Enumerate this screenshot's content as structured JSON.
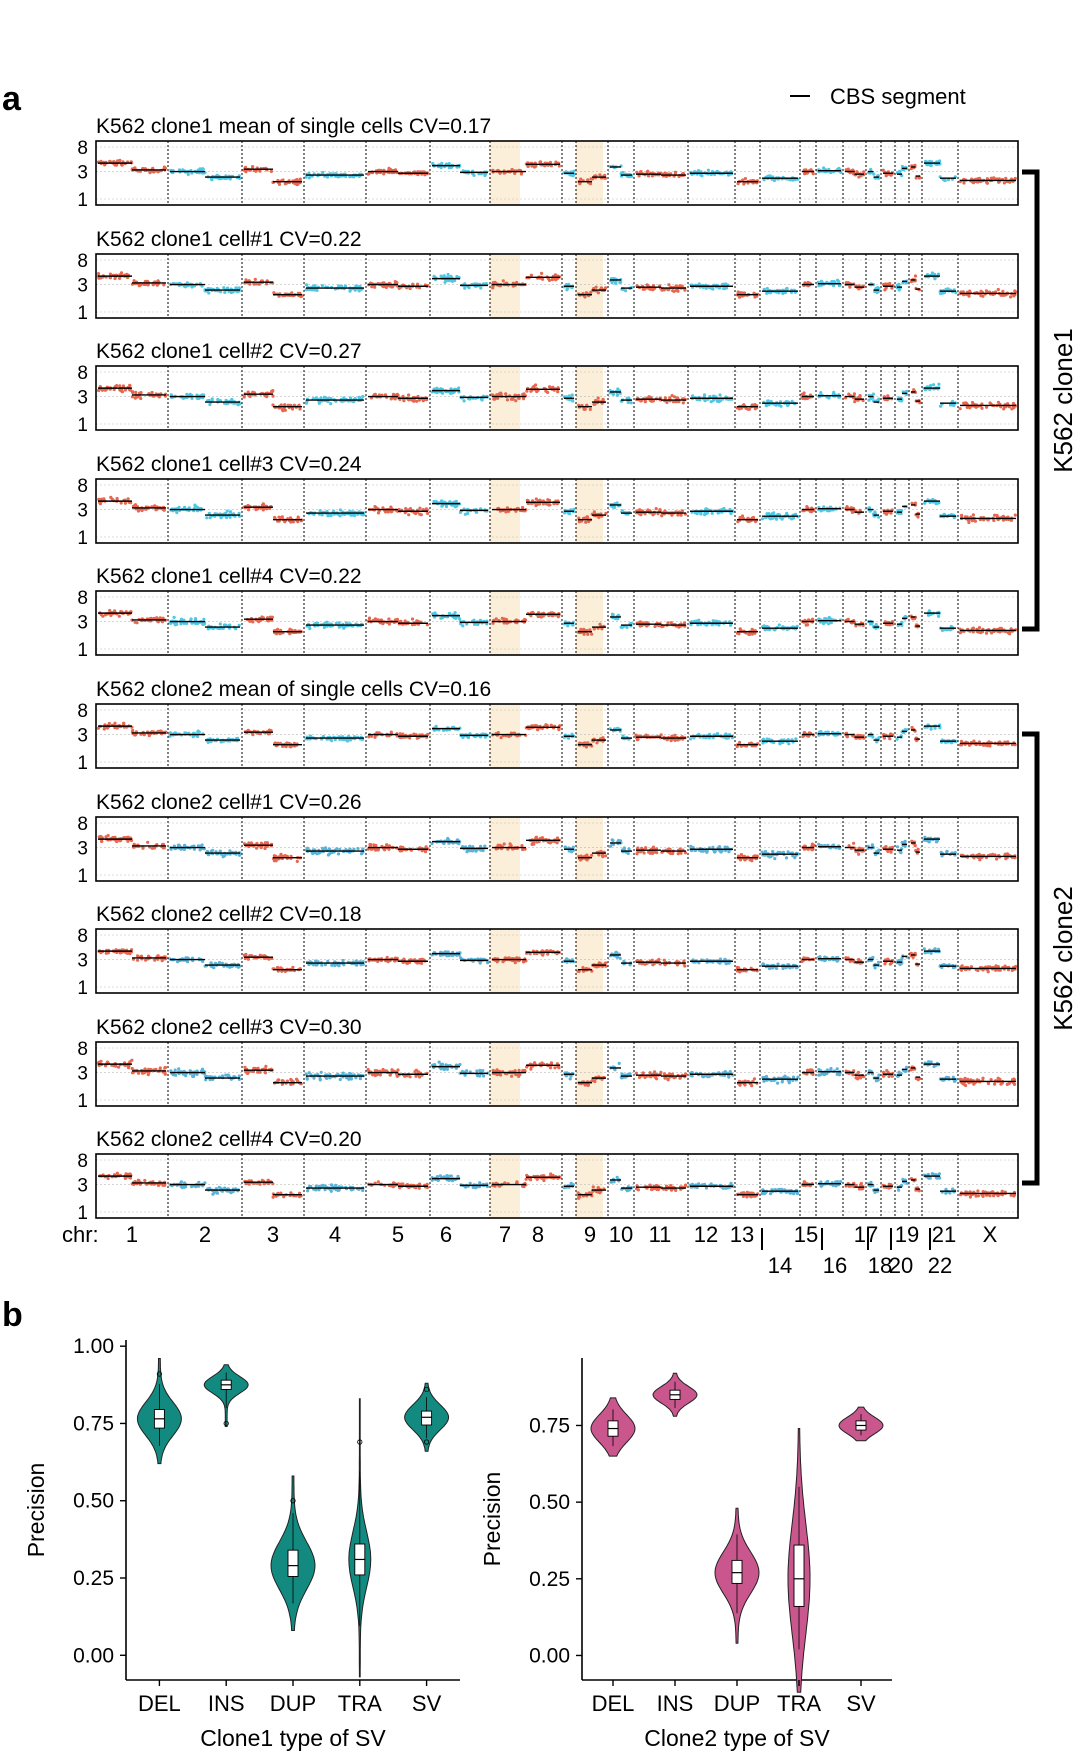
{
  "panel_a": {
    "label": "a",
    "legend": "CBS segment",
    "chr_prefix": "chr:",
    "chromosomes": [
      "1",
      "2",
      "3",
      "4",
      "5",
      "6",
      "7",
      "8",
      "9",
      "10",
      "11",
      "12",
      "13",
      "14",
      "15",
      "16",
      "17",
      "18",
      "19",
      "20",
      "21",
      "22",
      "X"
    ],
    "y_ticks": [
      "8",
      "3",
      "1"
    ],
    "highlighted_chromosomes": [
      "7",
      "9"
    ],
    "colors": {
      "odd_chr": "#e8674f",
      "even_chr": "#4fc8e6",
      "even_chr_clone2_cells": "#5ab4d9",
      "highlight": "#fbefd9",
      "segment": "#000000"
    },
    "groups": [
      {
        "label": "K562 clone1",
        "tracks": [
          0,
          1,
          2,
          3,
          4
        ]
      },
      {
        "label": "K562 clone2",
        "tracks": [
          5,
          6,
          7,
          8,
          9
        ]
      }
    ],
    "tracks": [
      {
        "title": "K562 clone1 mean of single cells CV=0.17",
        "cv": 0.17
      },
      {
        "title": "K562 clone1 cell#1 CV=0.22",
        "cv": 0.22
      },
      {
        "title": "K562 clone1 cell#2 CV=0.27",
        "cv": 0.27
      },
      {
        "title": "K562 clone1 cell#3 CV=0.24",
        "cv": 0.24
      },
      {
        "title": "K562 clone1 cell#4 CV=0.22",
        "cv": 0.22
      },
      {
        "title": "K562 clone2 mean of single cells CV=0.16",
        "cv": 0.16
      },
      {
        "title": "K562 clone2 cell#1 CV=0.26",
        "cv": 0.26
      },
      {
        "title": "K562 clone2 cell#2 CV=0.18",
        "cv": 0.18
      },
      {
        "title": "K562 clone2 cell#3 CV=0.30",
        "cv": 0.3
      },
      {
        "title": "K562 clone2 cell#4 CV=0.20",
        "cv": 0.2
      }
    ]
  },
  "panel_b": {
    "label": "b"
  },
  "chart_data": [
    {
      "type": "violin",
      "title": "",
      "xlabel": "Clone1 type of SV",
      "ylabel": "Precision",
      "categories": [
        "DEL",
        "INS",
        "DUP",
        "TRA",
        "SV"
      ],
      "ylim": [
        -0.08,
        1.02
      ],
      "y_ticks": [
        "0.00",
        "0.25",
        "0.50",
        "0.75",
        "1.00"
      ],
      "color": "#138a80",
      "series": [
        {
          "category": "DEL",
          "median": 0.765,
          "q1": 0.735,
          "q3": 0.795,
          "min": 0.62,
          "max": 0.96,
          "outliers": [
            0.91
          ]
        },
        {
          "category": "INS",
          "median": 0.875,
          "q1": 0.86,
          "q3": 0.89,
          "min": 0.74,
          "max": 0.94,
          "outliers": [
            0.75
          ]
        },
        {
          "category": "DUP",
          "median": 0.29,
          "q1": 0.255,
          "q3": 0.34,
          "min": 0.08,
          "max": 0.58,
          "outliers": [
            0.5
          ]
        },
        {
          "category": "TRA",
          "median": 0.31,
          "q1": 0.26,
          "q3": 0.36,
          "min": -0.07,
          "max": 0.83,
          "outliers": [
            0.69
          ]
        },
        {
          "category": "SV",
          "median": 0.77,
          "q1": 0.745,
          "q3": 0.79,
          "min": 0.66,
          "max": 0.88,
          "outliers": [
            0.86,
            0.69
          ]
        }
      ]
    },
    {
      "type": "violin",
      "title": "",
      "xlabel": "Clone2 type of SV",
      "ylabel": "Precision",
      "categories": [
        "DEL",
        "INS",
        "DUP",
        "TRA",
        "SV"
      ],
      "ylim": [
        -0.08,
        0.97
      ],
      "y_ticks": [
        "0.00",
        "0.25",
        "0.50",
        "0.75"
      ],
      "color": "#c9568c",
      "series": [
        {
          "category": "DEL",
          "median": 0.74,
          "q1": 0.715,
          "q3": 0.765,
          "min": 0.65,
          "max": 0.84,
          "outliers": []
        },
        {
          "category": "INS",
          "median": 0.85,
          "q1": 0.835,
          "q3": 0.865,
          "min": 0.78,
          "max": 0.92,
          "outliers": []
        },
        {
          "category": "DUP",
          "median": 0.27,
          "q1": 0.235,
          "q3": 0.31,
          "min": 0.04,
          "max": 0.48,
          "outliers": []
        },
        {
          "category": "TRA",
          "median": 0.25,
          "q1": 0.16,
          "q3": 0.36,
          "min": -0.12,
          "max": 0.74,
          "outliers": []
        },
        {
          "category": "SV",
          "median": 0.75,
          "q1": 0.735,
          "q3": 0.765,
          "min": 0.7,
          "max": 0.81,
          "outliers": []
        }
      ]
    }
  ]
}
